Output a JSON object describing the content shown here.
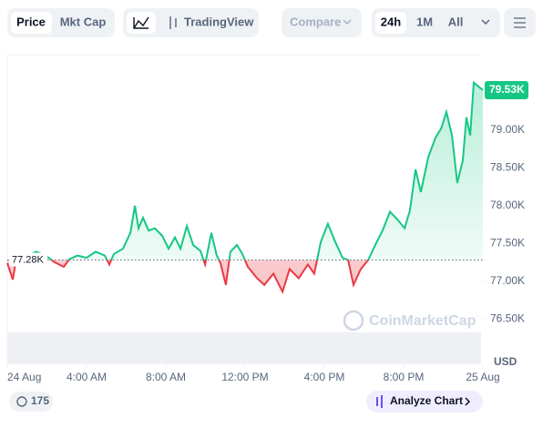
{
  "toolbar": {
    "tabs": [
      "Price",
      "Mkt Cap"
    ],
    "tradingview": "TradingView",
    "compare": "Compare",
    "ranges": [
      "24h",
      "1M",
      "All"
    ]
  },
  "chart_data": {
    "type": "line",
    "x": [
      0,
      0.28,
      0.46,
      1.01,
      1.47,
      1.93,
      2.39,
      2.85,
      3.13,
      3.54,
      4.0,
      4.46,
      4.92,
      5.15,
      5.38,
      5.84,
      6.21,
      6.44,
      6.62,
      6.85,
      7.13,
      7.45,
      7.82,
      8.14,
      8.46,
      8.74,
      9.06,
      9.38,
      9.75,
      9.98,
      10.3,
      10.57,
      10.76,
      11.03,
      11.26,
      11.59,
      11.86,
      12.14,
      12.6,
      12.97,
      13.43,
      13.89,
      14.25,
      14.71,
      15.17,
      15.49,
      15.82,
      16.18,
      16.55,
      16.92,
      17.2,
      17.47,
      17.84,
      18.21,
      18.57,
      18.94,
      19.31,
      19.68,
      20.05,
      20.32,
      20.6,
      20.87,
      21.24,
      21.61,
      21.89,
      22.16,
      22.44,
      22.71,
      22.99,
      23.17,
      23.36,
      23.54,
      23.82,
      24.0
    ],
    "values": [
      77.24,
      77.02,
      77.31,
      77.34,
      77.39,
      77.34,
      77.25,
      77.19,
      77.29,
      77.34,
      77.31,
      77.39,
      77.34,
      77.22,
      77.36,
      77.43,
      77.64,
      78.0,
      77.7,
      77.84,
      77.67,
      77.7,
      77.6,
      77.43,
      77.58,
      77.43,
      77.73,
      77.48,
      77.4,
      77.22,
      77.64,
      77.34,
      77.24,
      76.95,
      77.39,
      77.48,
      77.36,
      77.19,
      77.04,
      76.95,
      77.1,
      76.86,
      77.16,
      77.04,
      77.22,
      77.1,
      77.52,
      77.76,
      77.52,
      77.31,
      77.28,
      76.95,
      77.16,
      77.28,
      77.48,
      77.67,
      77.92,
      77.82,
      77.7,
      77.94,
      78.48,
      78.18,
      78.64,
      78.9,
      79.02,
      79.24,
      78.93,
      78.3,
      78.6,
      79.17,
      78.93,
      79.63,
      79.57,
      79.53
    ],
    "up_color": "#16c784",
    "down_color": "#ea3943",
    "baseline": {
      "value": 77.28,
      "label": "77.28K"
    },
    "current": {
      "value": 79.53,
      "label": "79.53K"
    },
    "xlim": [
      0,
      24
    ],
    "xticks": [
      {
        "value": 0,
        "label": "24 Aug"
      },
      {
        "value": 4,
        "label": "4:00 AM"
      },
      {
        "value": 8,
        "label": "8:00 AM"
      },
      {
        "value": 12,
        "label": "12:00 PM"
      },
      {
        "value": 16,
        "label": "4:00 PM"
      },
      {
        "value": 20,
        "label": "8:00 PM"
      },
      {
        "value": 24,
        "label": "25 Aug"
      }
    ],
    "ylim": [
      75.9,
      80.0
    ],
    "yticks": [
      {
        "value": 76.5,
        "label": "76.50K"
      },
      {
        "value": 77.0,
        "label": "77.00K"
      },
      {
        "value": 77.5,
        "label": "77.50K"
      },
      {
        "value": 78.0,
        "label": "78.00K"
      },
      {
        "value": 78.5,
        "label": "78.50K"
      },
      {
        "value": 79.0,
        "label": "79.00K"
      }
    ],
    "y_unit": "USD",
    "watermark": "CoinMarketCap"
  },
  "footer": {
    "badge": "175",
    "button": "Analyze Chart"
  }
}
